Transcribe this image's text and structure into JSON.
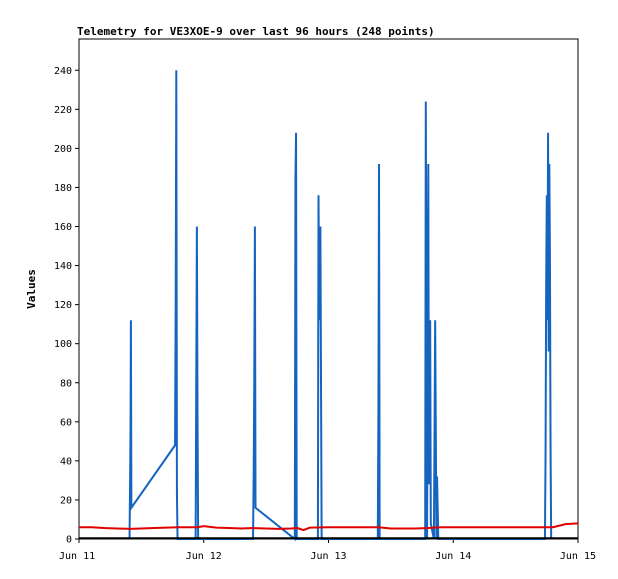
{
  "chart_data": {
    "type": "line",
    "title": "Telemetry for VE3XOE-9 over last 96 hours (248 points)",
    "xlabel": "",
    "ylabel": "Values",
    "x_ticks": [
      "Jun 11",
      "Jun 12",
      "Jun 13",
      "Jun 14",
      "Jun 15"
    ],
    "xlim": [
      0,
      4
    ],
    "ylim": [
      0,
      256
    ],
    "y_ticks": [
      0,
      20,
      40,
      60,
      80,
      100,
      120,
      140,
      160,
      180,
      200,
      220,
      240
    ],
    "grid": false,
    "colors": {
      "blue": "#1565c0",
      "red": "#e00000",
      "black": "#000000"
    },
    "series": [
      {
        "color": "#1565c0",
        "points": [
          [
            0.405,
            0
          ],
          [
            0.41,
            32
          ],
          [
            0.413,
            56
          ],
          [
            0.416,
            112
          ],
          [
            0.42,
            16
          ],
          [
            0.77,
            48
          ],
          [
            0.775,
            120
          ],
          [
            0.78,
            240
          ],
          [
            0.785,
            24
          ],
          [
            0.79,
            0
          ],
          [
            0.935,
            0
          ],
          [
            0.94,
            80
          ],
          [
            0.945,
            160
          ],
          [
            0.95,
            64
          ],
          [
            0.955,
            0
          ],
          [
            1.395,
            0
          ],
          [
            1.4,
            32
          ],
          [
            1.405,
            80
          ],
          [
            1.41,
            160
          ],
          [
            1.415,
            16
          ],
          [
            1.73,
            0
          ],
          [
            1.735,
            184
          ],
          [
            1.74,
            208
          ],
          [
            1.745,
            0
          ],
          [
            1.915,
            0
          ],
          [
            1.92,
            176
          ],
          [
            1.925,
            112
          ],
          [
            1.93,
            128
          ],
          [
            1.935,
            160
          ],
          [
            1.94,
            80
          ],
          [
            1.945,
            0
          ],
          [
            2.395,
            0
          ],
          [
            2.4,
            64
          ],
          [
            2.405,
            192
          ],
          [
            2.41,
            0
          ],
          [
            2.775,
            0
          ],
          [
            2.78,
            224
          ],
          [
            2.79,
            0
          ],
          [
            2.8,
            192
          ],
          [
            2.805,
            28
          ],
          [
            2.81,
            84
          ],
          [
            2.815,
            112
          ],
          [
            2.82,
            8
          ],
          [
            2.845,
            0
          ],
          [
            2.85,
            56
          ],
          [
            2.855,
            112
          ],
          [
            2.86,
            56
          ],
          [
            2.865,
            0
          ],
          [
            2.87,
            32
          ],
          [
            2.875,
            16
          ],
          [
            2.88,
            0
          ],
          [
            3.735,
            0
          ],
          [
            3.74,
            44
          ],
          [
            3.745,
            132
          ],
          [
            3.75,
            176
          ],
          [
            3.755,
            112
          ],
          [
            3.76,
            208
          ],
          [
            3.765,
            96
          ],
          [
            3.77,
            192
          ],
          [
            3.775,
            144
          ],
          [
            3.78,
            48
          ],
          [
            3.785,
            0
          ]
        ]
      },
      {
        "color": "#e00000",
        "points": [
          [
            0.0,
            6
          ],
          [
            0.1,
            6
          ],
          [
            0.2,
            5.6
          ],
          [
            0.3,
            5.4
          ],
          [
            0.4,
            5.2
          ],
          [
            0.5,
            5.4
          ],
          [
            0.6,
            5.6
          ],
          [
            0.7,
            5.8
          ],
          [
            0.8,
            6
          ],
          [
            0.95,
            6
          ],
          [
            1.0,
            6.6
          ],
          [
            1.1,
            5.8
          ],
          [
            1.2,
            5.6
          ],
          [
            1.3,
            5.4
          ],
          [
            1.4,
            5.6
          ],
          [
            1.5,
            5.4
          ],
          [
            1.6,
            5.2
          ],
          [
            1.7,
            5.4
          ],
          [
            1.75,
            5.6
          ],
          [
            1.8,
            4.6
          ],
          [
            1.85,
            5.8
          ],
          [
            2.0,
            6
          ],
          [
            2.2,
            6
          ],
          [
            2.4,
            6
          ],
          [
            2.5,
            5.4
          ],
          [
            2.6,
            5.4
          ],
          [
            2.7,
            5.4
          ],
          [
            2.8,
            5.6
          ],
          [
            2.9,
            6
          ],
          [
            3.0,
            6
          ],
          [
            3.2,
            6
          ],
          [
            3.4,
            6
          ],
          [
            3.6,
            6
          ],
          [
            3.8,
            6
          ],
          [
            3.9,
            7.6
          ],
          [
            4.0,
            8
          ]
        ]
      },
      {
        "color": "#000000",
        "points": [
          [
            0.0,
            0.4
          ],
          [
            4.0,
            0.4
          ]
        ]
      }
    ]
  }
}
